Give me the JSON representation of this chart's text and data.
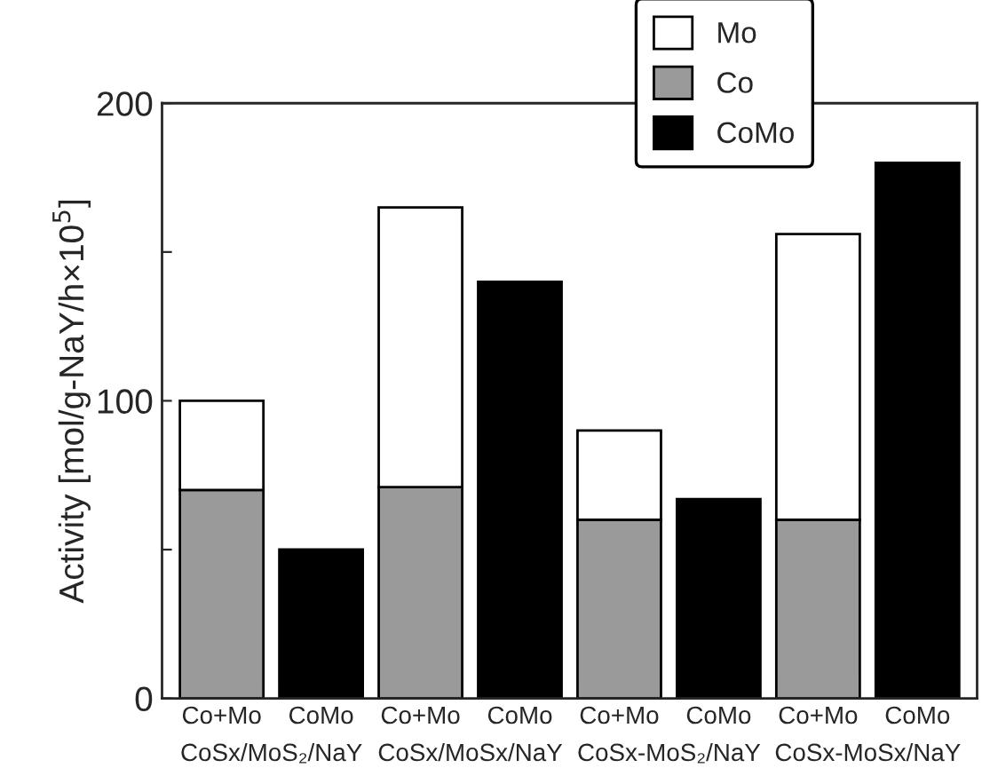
{
  "chart_data": {
    "type": "bar",
    "stacked": true,
    "ylabel": "Activity [mol/g-NaY/h×10$^{5}$]",
    "categories": [
      "Co+Mo",
      "CoMo",
      "Co+Mo",
      "CoMo",
      "Co+Mo",
      "CoMo",
      "Co+Mo",
      "CoMo"
    ],
    "annotations": [
      "CoSx/MoS₂/NaY",
      "CoSx/MoSx/NaY",
      "CoSx-MoS₂/NaY",
      "CoSx-MoSx/NaY"
    ],
    "series": [
      {
        "name": "Co",
        "color": "#9a9a9a",
        "values": [
          70,
          null,
          71,
          null,
          60,
          null,
          60,
          null
        ]
      },
      {
        "name": "Mo",
        "color": "#ffffff",
        "values": [
          30,
          null,
          94,
          null,
          30,
          null,
          96,
          null
        ]
      },
      {
        "name": "CoMo",
        "color": "#000000",
        "values": [
          null,
          50,
          null,
          140,
          null,
          67,
          null,
          180
        ]
      }
    ],
    "ylim": [
      0,
      200
    ],
    "yticks": [
      0,
      {
        "value": 50,
        "label": null
      },
      100,
      {
        "value": 150,
        "label": null
      },
      200
    ],
    "grid": false,
    "legend": "top right"
  }
}
